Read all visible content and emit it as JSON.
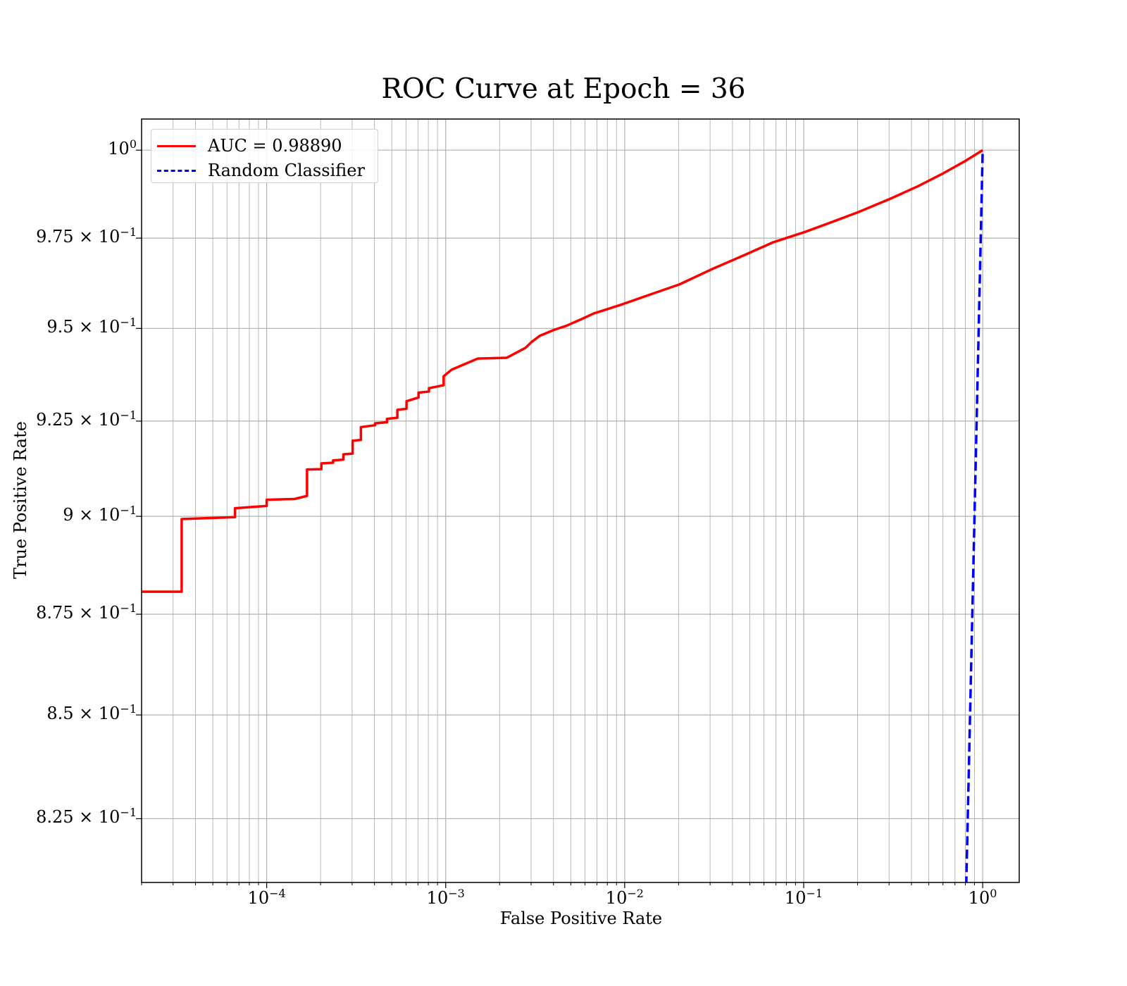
{
  "chart_data": {
    "type": "line",
    "title": "ROC Curve at Epoch = 36",
    "xlabel": "False Positive Rate",
    "ylabel": "True Positive Rate",
    "xscale": "log",
    "yscale": "log",
    "xlim": [
      2e-05,
      1.6
    ],
    "ylim": [
      0.81,
      1.009
    ],
    "grid": true,
    "grid_minor": true,
    "legend_position": "top-left",
    "x_ticks": [
      {
        "base": "10",
        "exp": "−4"
      },
      {
        "base": "10",
        "exp": "−3"
      },
      {
        "base": "10",
        "exp": "−2"
      },
      {
        "base": "10",
        "exp": "−1"
      },
      {
        "base": "10",
        "exp": "0"
      }
    ],
    "y_ticks": [
      {
        "mant": "",
        "exp": "0",
        "base": "10"
      },
      {
        "mant": "9.75 × ",
        "exp": "−1",
        "base": "10"
      },
      {
        "mant": "9.5 × ",
        "exp": "−1",
        "base": "10"
      },
      {
        "mant": "9.25 × ",
        "exp": "−1",
        "base": "10"
      },
      {
        "mant": "9 × ",
        "exp": "−1",
        "base": "10"
      },
      {
        "mant": "8.75 × ",
        "exp": "−1",
        "base": "10"
      },
      {
        "mant": "8.5 × ",
        "exp": "−1",
        "base": "10"
      },
      {
        "mant": "8.25 × ",
        "exp": "−1",
        "base": "10"
      }
    ],
    "series": [
      {
        "name": "AUC = 0.98890",
        "color": "#ff0000",
        "style": "solid",
        "x": [
          2e-05,
          3.35e-05,
          3.35e-05,
          6.65e-05,
          6.65e-05,
          0.0001,
          0.0001,
          0.000143,
          0.000168,
          0.000168,
          0.000202,
          0.000202,
          0.000235,
          0.000235,
          0.000268,
          0.000268,
          0.000302,
          0.000302,
          0.000336,
          0.000336,
          0.000403,
          0.000403,
          0.00047,
          0.00047,
          0.000537,
          0.000537,
          0.000604,
          0.000604,
          0.000705,
          0.000705,
          0.000806,
          0.000806,
          0.000974,
          0.000974,
          0.00108,
          0.00151,
          0.00219,
          0.00279,
          0.00302,
          0.00336,
          0.00403,
          0.00471,
          0.00571,
          0.00672,
          0.00941,
          0.0135,
          0.0202,
          0.0309,
          0.0473,
          0.0672,
          0.101,
          0.138,
          0.201,
          0.301,
          0.436,
          0.604,
          0.806,
          1.0
        ],
        "y": [
          0.8807,
          0.8807,
          0.8993,
          0.8998,
          0.9021,
          0.9027,
          0.9043,
          0.9045,
          0.9053,
          0.9122,
          0.9123,
          0.9138,
          0.914,
          0.9146,
          0.9148,
          0.9162,
          0.9164,
          0.9198,
          0.92,
          0.9234,
          0.9239,
          0.9244,
          0.9247,
          0.9256,
          0.9259,
          0.928,
          0.9283,
          0.9303,
          0.9313,
          0.9326,
          0.9329,
          0.9338,
          0.9346,
          0.937,
          0.9388,
          0.9418,
          0.942,
          0.9447,
          0.9463,
          0.948,
          0.9496,
          0.9507,
          0.9525,
          0.9541,
          0.9564,
          0.9591,
          0.9621,
          0.9664,
          0.9704,
          0.9738,
          0.9767,
          0.9792,
          0.9823,
          0.986,
          0.9897,
          0.9934,
          0.997,
          1.0
        ]
      },
      {
        "name": "Random Classifier",
        "color": "#0000ff",
        "style": "dashed",
        "x": [
          0.8,
          0.85,
          0.9,
          0.95,
          1.0
        ],
        "y": [
          0.8,
          0.85,
          0.9,
          0.95,
          1.0
        ]
      }
    ]
  }
}
